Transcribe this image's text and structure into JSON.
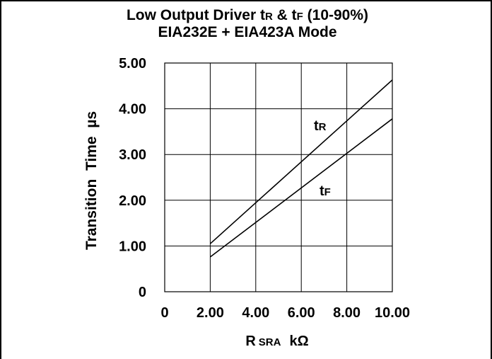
{
  "chart_data": {
    "type": "line",
    "title": {
      "prefix": "Low Output Driver ",
      "tR_main": "t",
      "tR_sub": "R",
      "mid": " & ",
      "tF_main": "t",
      "tF_sub": "F",
      "suffix": " (10-90%)"
    },
    "subtitle": "EIA232E + EIA423A Mode",
    "xlabel": {
      "main": "R",
      "sub": "SRA",
      "unit": "kΩ"
    },
    "ylabel": "Transition  Time  µs",
    "xlim": [
      0,
      10
    ],
    "ylim": [
      0,
      5
    ],
    "x_ticks": [
      {
        "value": 0,
        "label": "0"
      },
      {
        "value": 2,
        "label": "2.00"
      },
      {
        "value": 4,
        "label": "4.00"
      },
      {
        "value": 6,
        "label": "6.00"
      },
      {
        "value": 8,
        "label": "8.00"
      },
      {
        "value": 10,
        "label": "10.00"
      }
    ],
    "y_ticks": [
      {
        "value": 0,
        "label": "0"
      },
      {
        "value": 1,
        "label": "1.00"
      },
      {
        "value": 2,
        "label": "2.00"
      },
      {
        "value": 3,
        "label": "3.00"
      },
      {
        "value": 4,
        "label": "4.00"
      },
      {
        "value": 5,
        "label": "5.00"
      }
    ],
    "grid": true,
    "series": [
      {
        "name": {
          "main": "t",
          "sub": "R"
        },
        "x": [
          2,
          10
        ],
        "y": [
          1.05,
          4.63
        ]
      },
      {
        "name": {
          "main": "t",
          "sub": "F"
        },
        "x": [
          2,
          10
        ],
        "y": [
          0.76,
          3.78
        ]
      }
    ]
  }
}
